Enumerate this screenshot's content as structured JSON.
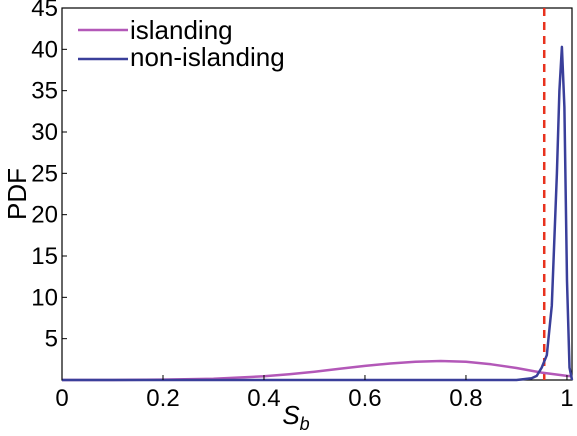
{
  "chart_data": {
    "type": "line",
    "title": "",
    "xlabel": "S",
    "xlabel_subscript": "b",
    "ylabel": "PDF",
    "xlim": [
      0,
      1.01
    ],
    "ylim": [
      0,
      45
    ],
    "x_ticks": [
      0,
      0.2,
      0.4,
      0.6,
      0.8,
      1
    ],
    "x_tick_labels": [
      "0",
      "0.2",
      "0.4",
      "0.6",
      "0.8",
      "1"
    ],
    "y_ticks": [
      5,
      10,
      15,
      20,
      25,
      30,
      35,
      40,
      45
    ],
    "y_tick_labels": [
      "5",
      "10",
      "15",
      "20",
      "25",
      "30",
      "35",
      "40",
      "45"
    ],
    "grid": false,
    "legend_position": "top-left",
    "series": [
      {
        "name": "islanding",
        "color": "#b358b8",
        "x": [
          0,
          0.1,
          0.2,
          0.3,
          0.4,
          0.45,
          0.5,
          0.55,
          0.6,
          0.65,
          0.7,
          0.75,
          0.8,
          0.85,
          0.9,
          0.95,
          1.0,
          1.01
        ],
        "y": [
          0,
          0.0,
          0.05,
          0.15,
          0.45,
          0.7,
          1.0,
          1.35,
          1.7,
          2.0,
          2.2,
          2.3,
          2.2,
          1.9,
          1.45,
          0.9,
          0.5,
          0.45
        ]
      },
      {
        "name": "non-islanding",
        "color": "#3a3f9a",
        "x": [
          0,
          0.9,
          0.93,
          0.94,
          0.95,
          0.96,
          0.97,
          0.98,
          0.985,
          0.99,
          0.995,
          1.0,
          1.005,
          1.01
        ],
        "y": [
          0,
          0,
          0.2,
          0.5,
          1.5,
          3.0,
          9.0,
          25.0,
          35.0,
          40.3,
          33.0,
          12.0,
          1.5,
          0
        ]
      }
    ],
    "threshold_line": {
      "x": 0.955,
      "color": "#e8321e",
      "style": "dashed"
    }
  }
}
